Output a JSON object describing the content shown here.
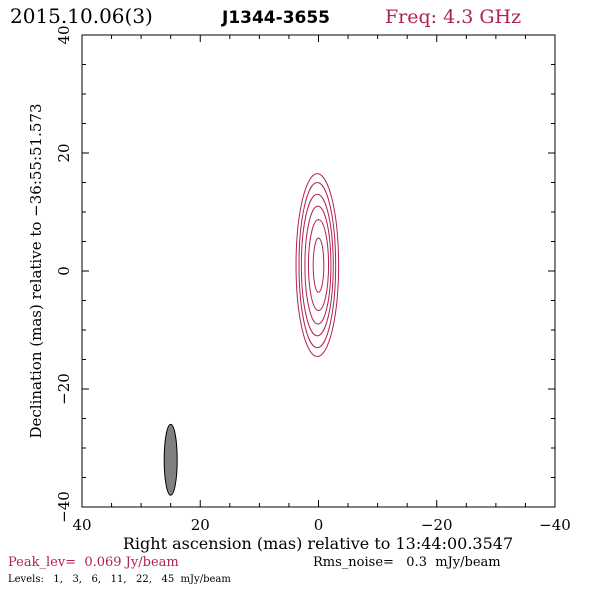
{
  "header": {
    "date": "2015.10.06(3)",
    "source": "J1344-3655",
    "freq": "Freq: 4.3 GHz"
  },
  "footer": {
    "peak": "Peak_lev=  0.069 Jy/beam",
    "rms": "Rms_noise=   0.3  mJy/beam",
    "levels": "Levels:   1,   3,   6,   11,   22,   45  mJy/beam"
  },
  "colors": {
    "accent": "#b0224f",
    "beam_fill": "#808080",
    "axes": "#000000"
  },
  "chart_data": {
    "type": "contour",
    "xlabel": "Right ascension (mas) relative to 13:44:00.3547",
    "ylabel": "Declination (mas) relative to −36:55:51.573",
    "xlim": [
      40,
      -40
    ],
    "ylim": [
      -40,
      40
    ],
    "x_ticks": [
      40,
      20,
      0,
      -20,
      -40
    ],
    "y_ticks": [
      -40,
      -20,
      0,
      20,
      40
    ],
    "x_tick_labels": [
      "40",
      "20",
      "0",
      "−20",
      "−40"
    ],
    "y_tick_labels": [
      "−40",
      "−20",
      "0",
      "20",
      "40"
    ],
    "contour_levels_mJy": [
      1,
      3,
      6,
      11,
      22,
      45
    ],
    "contours": [
      {
        "level": 1,
        "center": [
          0.2,
          1.0
        ],
        "half_width": 3.6,
        "half_height": 15.5
      },
      {
        "level": 3,
        "center": [
          0.2,
          1.0
        ],
        "half_width": 3.1,
        "half_height": 14.0
      },
      {
        "level": 6,
        "center": [
          0.2,
          1.0
        ],
        "half_width": 2.7,
        "half_height": 12.0
      },
      {
        "level": 11,
        "center": [
          0.1,
          1.0
        ],
        "half_width": 2.2,
        "half_height": 10.0
      },
      {
        "level": 22,
        "center": [
          0.0,
          1.0
        ],
        "half_width": 1.7,
        "half_height": 7.7
      },
      {
        "level": 45,
        "center": [
          0.0,
          1.0
        ],
        "half_width": 0.9,
        "half_height": 4.6
      }
    ],
    "beam": {
      "center": [
        25.0,
        -32.0
      ],
      "half_width": 1.1,
      "half_height": 6.0
    }
  }
}
